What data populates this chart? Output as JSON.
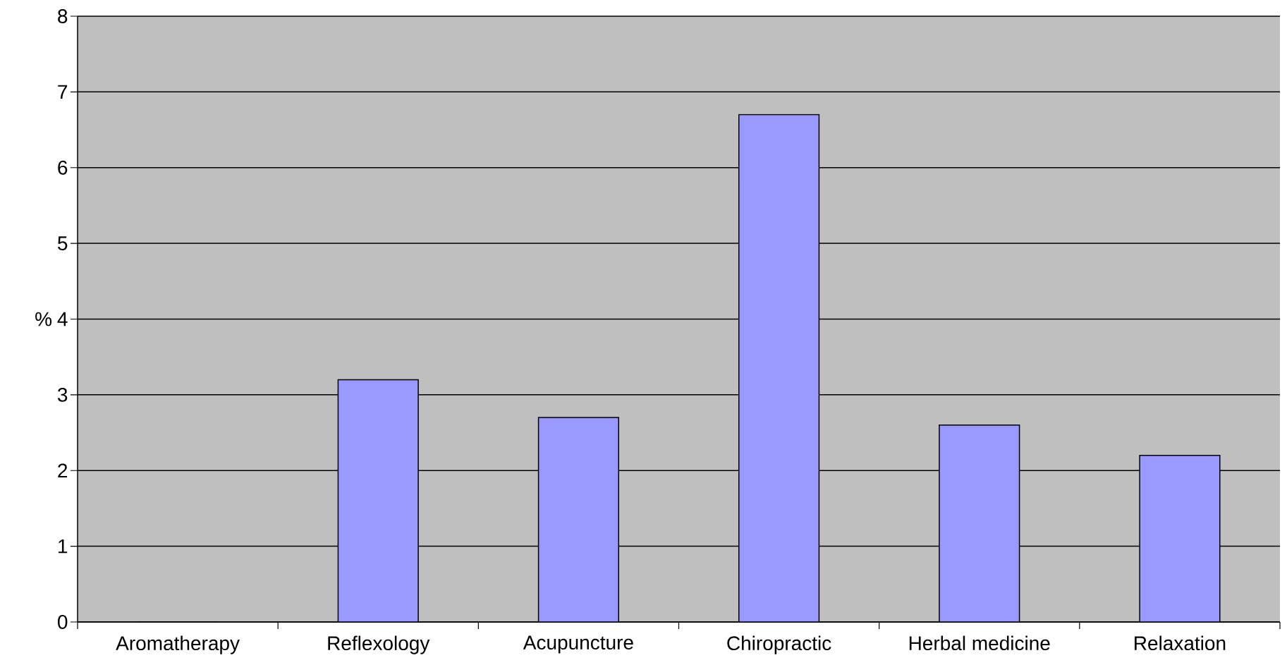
{
  "chart_data": {
    "type": "bar",
    "ylabel": "%",
    "categories": [
      "Aromatherapy",
      "Reflexology",
      "Acupuncture",
      "Chiropractic",
      "Herbal medicine",
      "Relaxation"
    ],
    "values": [
      0,
      3.2,
      2.7,
      6.7,
      2.6,
      2.2
    ],
    "color": "#9999ff",
    "ylim": [
      0,
      8
    ],
    "yticks": [
      0,
      1,
      2,
      3,
      4,
      5,
      6,
      7,
      8
    ],
    "grid": "y"
  }
}
